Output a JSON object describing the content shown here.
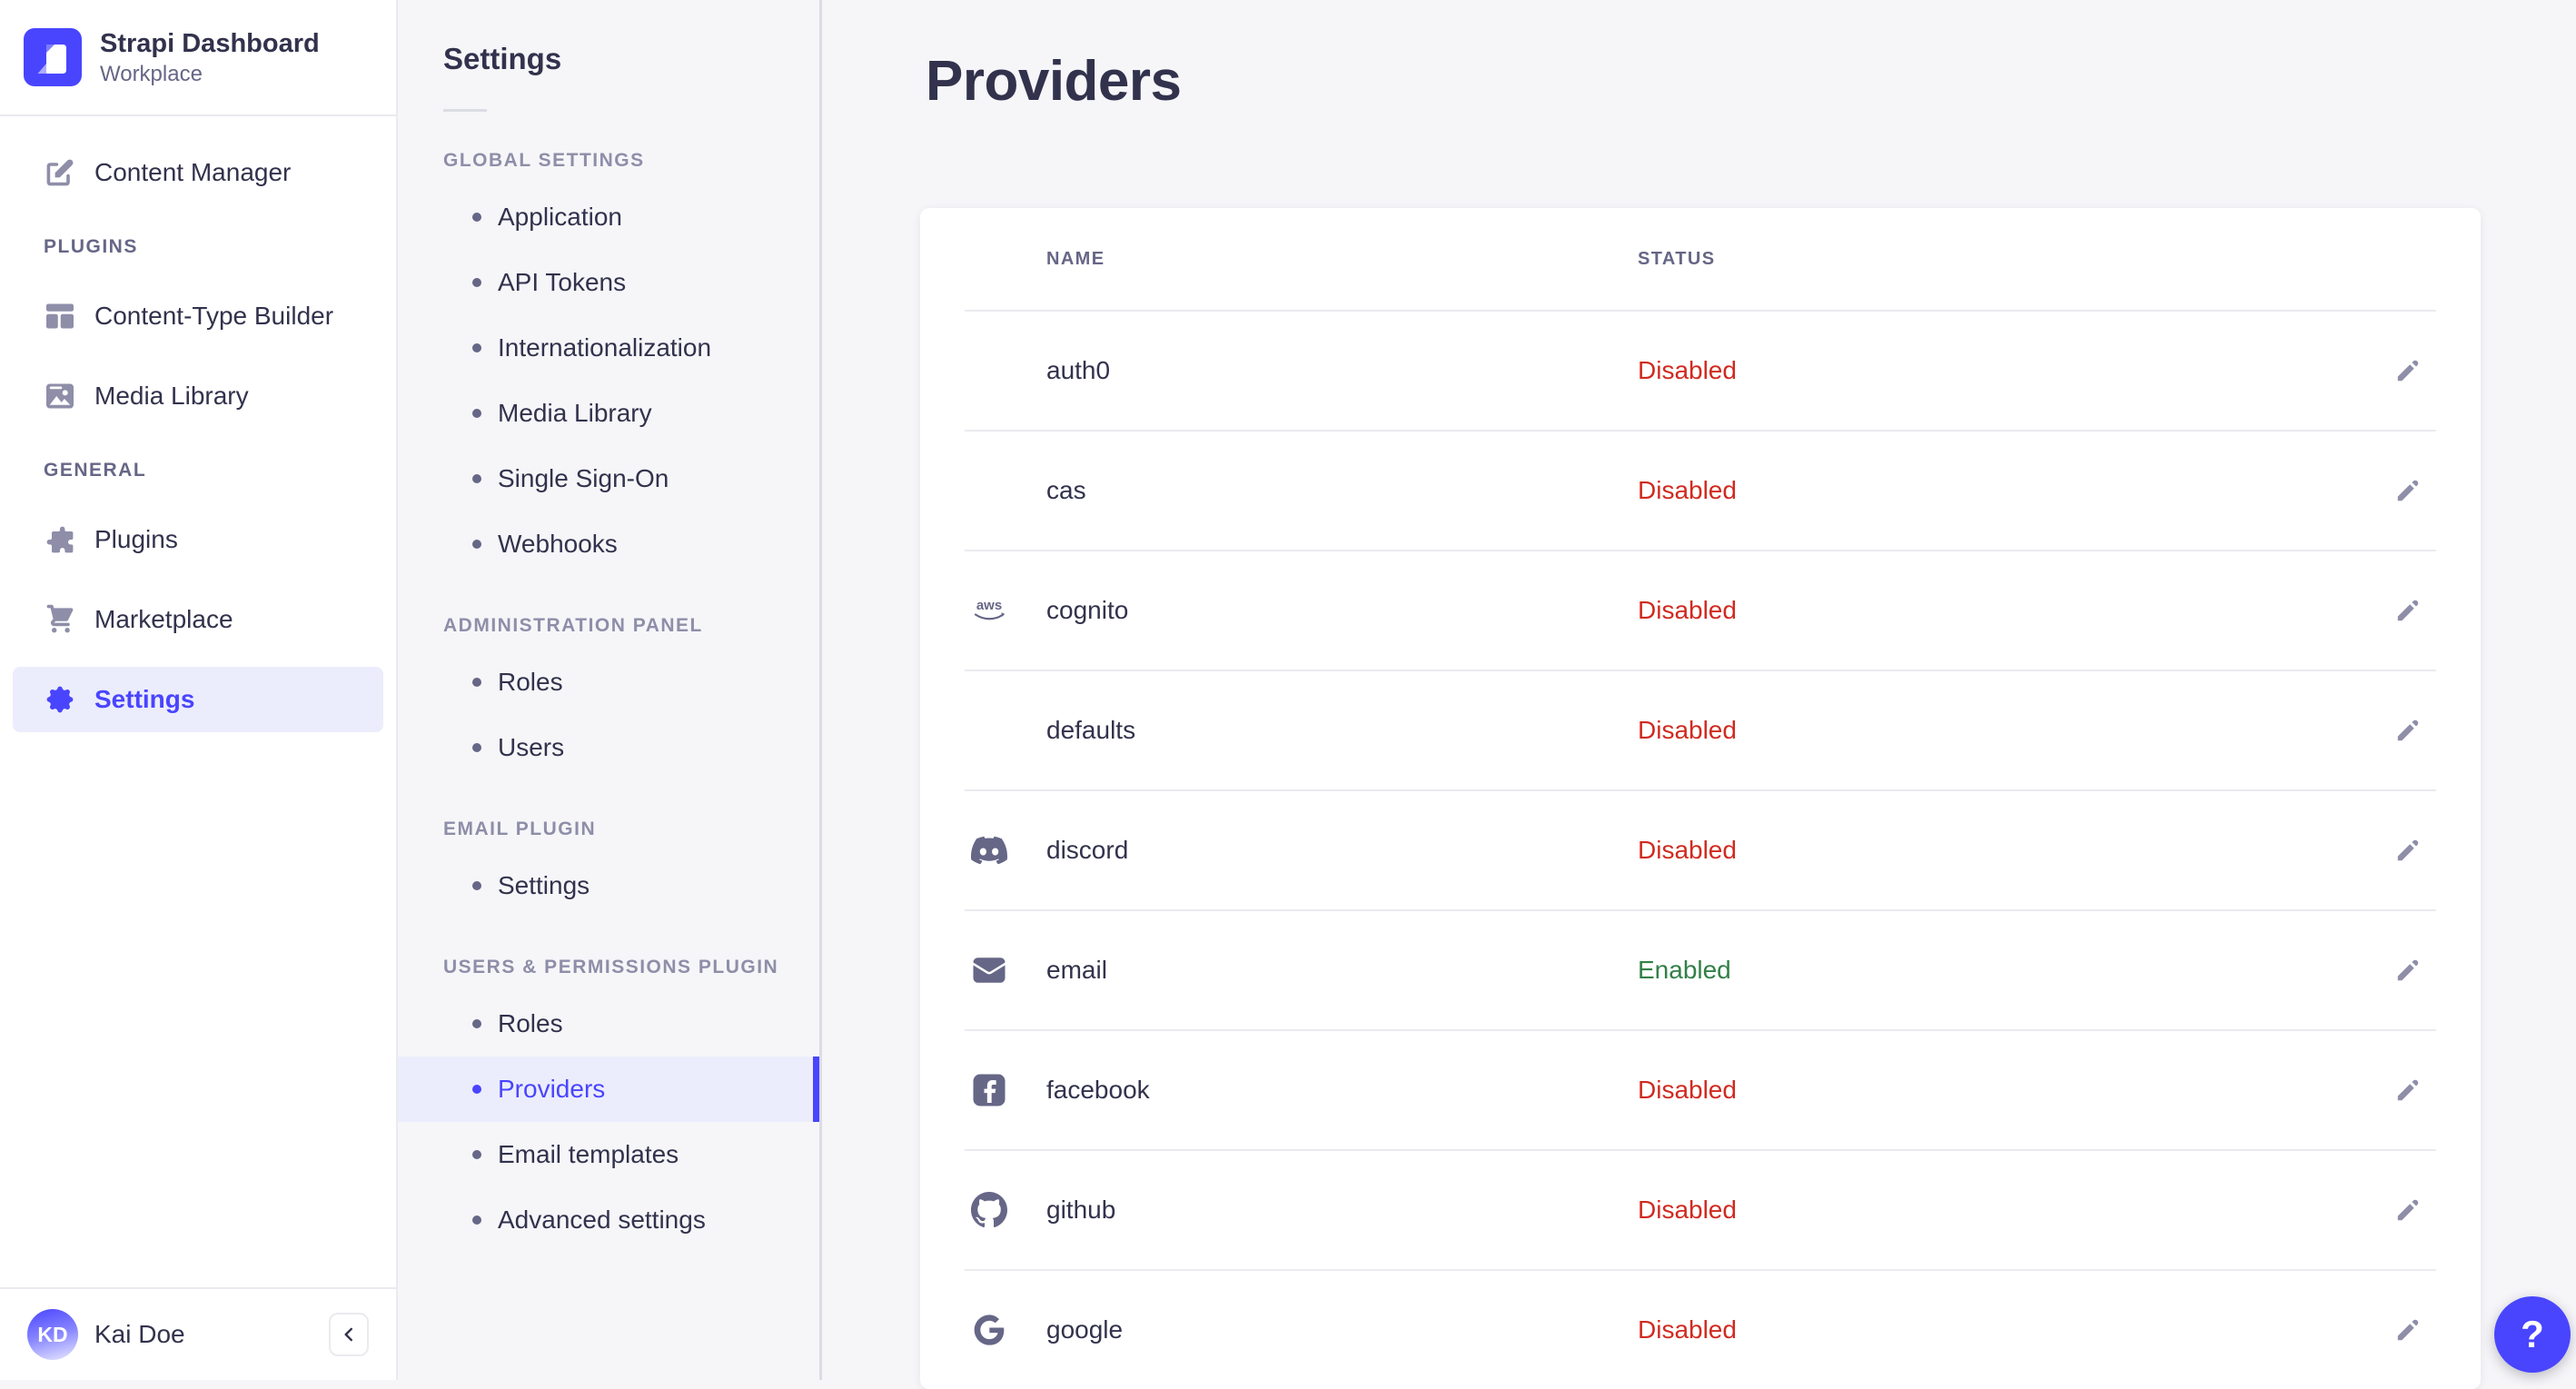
{
  "app": {
    "name": "Strapi Dashboard",
    "workspace": "Workplace"
  },
  "colors": {
    "accent": "#4945ff",
    "active_bg": "#ecedfc",
    "danger": "#d02b20",
    "success": "#328048",
    "muted": "#666687"
  },
  "sidebar": {
    "groups": [
      {
        "label": null,
        "items": [
          {
            "label": "Content Manager",
            "icon": "pencil-square"
          }
        ]
      },
      {
        "label": "PLUGINS",
        "items": [
          {
            "label": "Content-Type Builder",
            "icon": "layout"
          },
          {
            "label": "Media Library",
            "icon": "media"
          }
        ]
      },
      {
        "label": "GENERAL",
        "items": [
          {
            "label": "Plugins",
            "icon": "puzzle"
          },
          {
            "label": "Marketplace",
            "icon": "cart"
          },
          {
            "label": "Settings",
            "icon": "cog",
            "active": true
          }
        ]
      }
    ],
    "user": {
      "initials": "KD",
      "name": "Kai Doe"
    }
  },
  "subnav": {
    "title": "Settings",
    "sections": [
      {
        "label": "GLOBAL SETTINGS",
        "items": [
          {
            "label": "Application"
          },
          {
            "label": "API Tokens"
          },
          {
            "label": "Internationalization"
          },
          {
            "label": "Media Library"
          },
          {
            "label": "Single Sign-On"
          },
          {
            "label": "Webhooks"
          }
        ]
      },
      {
        "label": "ADMINISTRATION PANEL",
        "items": [
          {
            "label": "Roles"
          },
          {
            "label": "Users"
          }
        ]
      },
      {
        "label": "EMAIL PLUGIN",
        "items": [
          {
            "label": "Settings"
          }
        ]
      },
      {
        "label": "USERS & PERMISSIONS PLUGIN",
        "items": [
          {
            "label": "Roles"
          },
          {
            "label": "Providers",
            "active": true
          },
          {
            "label": "Email templates"
          },
          {
            "label": "Advanced settings"
          }
        ]
      }
    ]
  },
  "main": {
    "title": "Providers",
    "table": {
      "columns": [
        "NAME",
        "STATUS"
      ],
      "rows": [
        {
          "name": "auth0",
          "icon": null,
          "status": "Disabled"
        },
        {
          "name": "cas",
          "icon": null,
          "status": "Disabled"
        },
        {
          "name": "cognito",
          "icon": "aws",
          "status": "Disabled"
        },
        {
          "name": "defaults",
          "icon": null,
          "status": "Disabled"
        },
        {
          "name": "discord",
          "icon": "discord",
          "status": "Disabled"
        },
        {
          "name": "email",
          "icon": "envelope",
          "status": "Enabled"
        },
        {
          "name": "facebook",
          "icon": "facebook",
          "status": "Disabled"
        },
        {
          "name": "github",
          "icon": "github",
          "status": "Disabled"
        },
        {
          "name": "google",
          "icon": "google",
          "status": "Disabled"
        }
      ]
    }
  },
  "help": {
    "label": "?"
  }
}
